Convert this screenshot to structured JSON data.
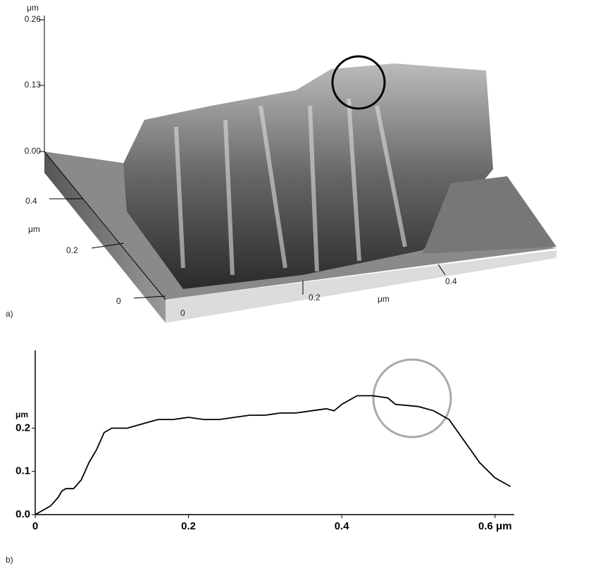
{
  "surface_plot": {
    "panel_label": "a)",
    "z_unit": "μm",
    "z_ticks": [
      "0.26",
      "0.13",
      "0.00"
    ],
    "y_ticks": [
      "0.4",
      "0.2",
      "0"
    ],
    "y_unit": "μm",
    "x_ticks": [
      "0",
      "0.2",
      "0.4"
    ],
    "x_unit": "μm"
  },
  "chart_data": {
    "type": "line",
    "panel_label": "b)",
    "y_label": "μm",
    "color": "#000000",
    "x": [
      0,
      0.01,
      0.02,
      0.03,
      0.035,
      0.04,
      0.05,
      0.06,
      0.07,
      0.08,
      0.09,
      0.1,
      0.12,
      0.14,
      0.16,
      0.18,
      0.2,
      0.22,
      0.24,
      0.26,
      0.28,
      0.3,
      0.32,
      0.34,
      0.36,
      0.38,
      0.39,
      0.4,
      0.42,
      0.44,
      0.46,
      0.47,
      0.5,
      0.52,
      0.54,
      0.56,
      0.58,
      0.6,
      0.62
    ],
    "values": [
      0.0,
      0.01,
      0.02,
      0.04,
      0.055,
      0.06,
      0.06,
      0.08,
      0.12,
      0.15,
      0.19,
      0.2,
      0.2,
      0.21,
      0.22,
      0.22,
      0.225,
      0.22,
      0.22,
      0.225,
      0.23,
      0.23,
      0.235,
      0.235,
      0.24,
      0.245,
      0.24,
      0.255,
      0.275,
      0.275,
      0.27,
      0.255,
      0.25,
      0.24,
      0.22,
      0.17,
      0.12,
      0.085,
      0.065
    ],
    "xlim": [
      0,
      0.625
    ],
    "ylim": [
      0,
      0.38
    ],
    "xticks": [
      0,
      0.2,
      0.4,
      {
        "value": 0.6,
        "label": "0.6 μm"
      }
    ],
    "yticks": [
      {
        "value": 0,
        "label": "0.0"
      },
      0.1,
      0.2
    ]
  }
}
